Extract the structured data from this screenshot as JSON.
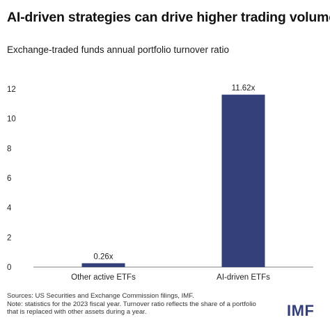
{
  "title": "AI-driven strategies can drive higher trading volumes",
  "subtitle": "Exchange-traded funds annual portfolio turnover ratio",
  "chart_data": {
    "type": "bar",
    "categories": [
      "Other active ETFs",
      "AI-driven ETFs"
    ],
    "values": [
      0.26,
      11.62
    ],
    "data_labels": [
      "0.26x",
      "11.62x"
    ],
    "ylim": [
      0,
      12
    ],
    "yticks": [
      0,
      2,
      4,
      6,
      8,
      10,
      12
    ],
    "grid": false,
    "bar_color": "#33407a"
  },
  "footer": {
    "source": "Sources: US Securities and Exchange Commission filings, IMF.",
    "note_line1": "Note: statistics for the 2023 fiscal year. Turnover ratio reflects the share of a portfolio",
    "note_line2": "that is replaced with other assets during a year."
  },
  "logo": "IMF"
}
